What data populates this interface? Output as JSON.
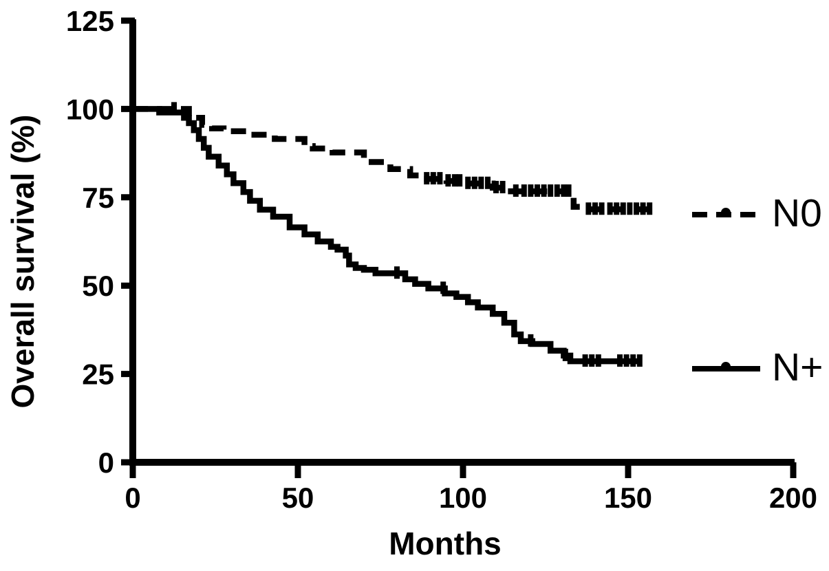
{
  "figure": {
    "background_color": "#ffffff",
    "ink_color": "#000000"
  },
  "chart_data": {
    "type": "line",
    "subtype": "kaplan-meier-step-survival",
    "title": "",
    "xlabel": "Months",
    "ylabel": "Overall survival (%)",
    "xlim": [
      0,
      200
    ],
    "ylim": [
      0,
      125
    ],
    "xticks": [
      0,
      50,
      100,
      150,
      200
    ],
    "yticks": [
      0,
      25,
      50,
      75,
      100,
      125
    ],
    "grid": false,
    "legend_position": "right-middle",
    "series": [
      {
        "name": "N0",
        "line_style": "dashed",
        "color": "#000000",
        "steps": [
          [
            0,
            100
          ],
          [
            17,
            97.5
          ],
          [
            21,
            95.5
          ],
          [
            24,
            94.5
          ],
          [
            27.5,
            93.7
          ],
          [
            35,
            92.7
          ],
          [
            43,
            91.5
          ],
          [
            52,
            89.5
          ],
          [
            54.5,
            88.8
          ],
          [
            60.5,
            87.7
          ],
          [
            70,
            85
          ],
          [
            78,
            83
          ],
          [
            84,
            81.2
          ],
          [
            88,
            80.2
          ],
          [
            95,
            79.6
          ],
          [
            100,
            78.9
          ],
          [
            109,
            77.7
          ],
          [
            114.5,
            76.7
          ],
          [
            133.5,
            72.3
          ],
          [
            136,
            71.6
          ],
          [
            157,
            71.6
          ]
        ],
        "censor_marks": [
          [
            12.5,
            100
          ],
          [
            89,
            80.2
          ],
          [
            91,
            80.2
          ],
          [
            93,
            80.2
          ],
          [
            95.5,
            79.6
          ],
          [
            97.5,
            79.6
          ],
          [
            99,
            79.6
          ],
          [
            101.5,
            78.9
          ],
          [
            103.5,
            78.9
          ],
          [
            105.5,
            78.9
          ],
          [
            107.5,
            78.9
          ],
          [
            110,
            77.7
          ],
          [
            112,
            77.7
          ],
          [
            116,
            76.7
          ],
          [
            118.5,
            76.7
          ],
          [
            120.5,
            76.7
          ],
          [
            122.5,
            76.7
          ],
          [
            124.5,
            76.7
          ],
          [
            126.5,
            76.7
          ],
          [
            128.5,
            76.7
          ],
          [
            130.5,
            76.7
          ],
          [
            132,
            76.7
          ],
          [
            138,
            71.6
          ],
          [
            140,
            71.6
          ],
          [
            142,
            71.6
          ],
          [
            144.5,
            71.6
          ],
          [
            146.5,
            71.6
          ],
          [
            148.5,
            71.6
          ],
          [
            150.5,
            71.6
          ],
          [
            152.5,
            71.6
          ],
          [
            154.5,
            71.6
          ],
          [
            156.5,
            71.6
          ]
        ]
      },
      {
        "name": "N+",
        "line_style": "solid",
        "color": "#000000",
        "steps": [
          [
            0,
            100
          ],
          [
            8,
            99
          ],
          [
            15.5,
            97.5
          ],
          [
            17,
            96
          ],
          [
            18.5,
            94
          ],
          [
            20,
            91.5
          ],
          [
            21.5,
            89
          ],
          [
            23,
            86.5
          ],
          [
            26,
            84
          ],
          [
            28.5,
            81.5
          ],
          [
            30.5,
            79
          ],
          [
            33.5,
            76.5
          ],
          [
            35.5,
            74
          ],
          [
            38.5,
            71.5
          ],
          [
            42.5,
            69.5
          ],
          [
            47.5,
            66.5
          ],
          [
            52,
            64.5
          ],
          [
            56,
            62.5
          ],
          [
            60,
            61
          ],
          [
            62,
            60.2
          ],
          [
            64.5,
            58.5
          ],
          [
            65.5,
            56
          ],
          [
            67.5,
            55
          ],
          [
            70,
            54.5
          ],
          [
            73.5,
            53.5
          ],
          [
            82.5,
            51.8
          ],
          [
            85.5,
            50.5
          ],
          [
            89.5,
            49.2
          ],
          [
            94.5,
            47.8
          ],
          [
            98,
            46.8
          ],
          [
            101.5,
            45.3
          ],
          [
            104.5,
            43.8
          ],
          [
            109,
            42
          ],
          [
            112.5,
            39.5
          ],
          [
            115.5,
            36.2
          ],
          [
            117.5,
            34.3
          ],
          [
            121,
            33.5
          ],
          [
            126.5,
            31.6
          ],
          [
            130.5,
            30.2
          ],
          [
            132.5,
            28.6
          ],
          [
            154,
            28.6
          ]
        ],
        "censor_marks": [
          [
            80,
            53.5
          ],
          [
            94,
            49.2
          ],
          [
            120.5,
            34.3
          ],
          [
            131,
            30.2
          ],
          [
            137,
            28.6
          ],
          [
            139,
            28.6
          ],
          [
            141,
            28.6
          ],
          [
            147.5,
            28.6
          ],
          [
            149.5,
            28.6
          ],
          [
            151.5,
            28.6
          ],
          [
            153.5,
            28.6
          ]
        ]
      }
    ]
  }
}
